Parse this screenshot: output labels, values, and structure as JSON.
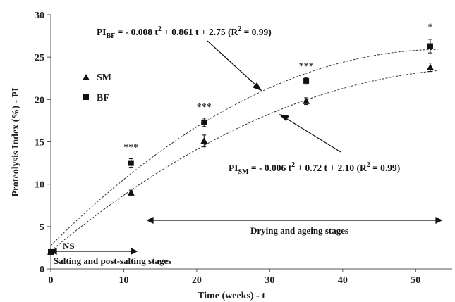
{
  "chart_data": {
    "type": "scatter",
    "xlabel": "Time (weeks) - t",
    "ylabel": "Proteolysis Index (%) - PI",
    "xlim": [
      0,
      55
    ],
    "ylim": [
      0,
      30
    ],
    "xticks": [
      0,
      10,
      20,
      30,
      40,
      50
    ],
    "yticks": [
      0,
      5,
      10,
      15,
      20,
      25,
      30
    ],
    "x_tick_labels": [
      "0",
      "10",
      "20",
      "30",
      "40",
      "50"
    ],
    "y_tick_labels": [
      "0",
      "5",
      "10",
      "15",
      "20",
      "25",
      "30"
    ],
    "grid": false,
    "legend": {
      "placement": "upper-left",
      "entries": [
        {
          "label": "SM",
          "marker": "triangle"
        },
        {
          "label": "BF",
          "marker": "square"
        }
      ]
    },
    "series": [
      {
        "name": "SM",
        "marker": "triangle",
        "x": [
          0,
          11,
          21,
          35,
          52
        ],
        "y": [
          2.0,
          9.0,
          15.1,
          19.8,
          23.8
        ],
        "err": [
          0.0,
          0.3,
          0.7,
          0.4,
          0.5
        ],
        "fit": {
          "a": -0.006,
          "b": 0.72,
          "c": 2.1
        }
      },
      {
        "name": "BF",
        "marker": "square",
        "x": [
          0,
          11,
          21,
          35,
          52
        ],
        "y": [
          2.0,
          12.5,
          17.3,
          22.2,
          26.3
        ],
        "err": [
          0.0,
          0.5,
          0.5,
          0.4,
          0.8
        ],
        "fit": {
          "a": -0.008,
          "b": 0.861,
          "c": 2.75
        }
      }
    ],
    "annotations": {
      "eq_bf": {
        "prefix": "PI",
        "sub": "BF",
        "middle": " = - 0.008 t",
        "sup": "2",
        "rest": " + 0.861 t + 2.75  (R",
        "sup2": "2",
        "end": " = 0.99)"
      },
      "eq_sm": {
        "prefix": "PI",
        "sub": "SM",
        "middle": " = - 0.006 t",
        "sup": "2",
        "rest": " + 0.72 t + 2.10  (R",
        "sup2": "2",
        "end": " = 0.99)"
      },
      "significance": [
        {
          "x": 11,
          "y": 14.0,
          "text": "***"
        },
        {
          "x": 21,
          "y": 18.8,
          "text": "***"
        },
        {
          "x": 35,
          "y": 23.6,
          "text": "***"
        },
        {
          "x": 52,
          "y": 28.2,
          "text": "*"
        }
      ],
      "ns_label": "NS",
      "stage_left": "Salting and post-salting stages",
      "stage_right": "Drying and ageing stages"
    }
  }
}
